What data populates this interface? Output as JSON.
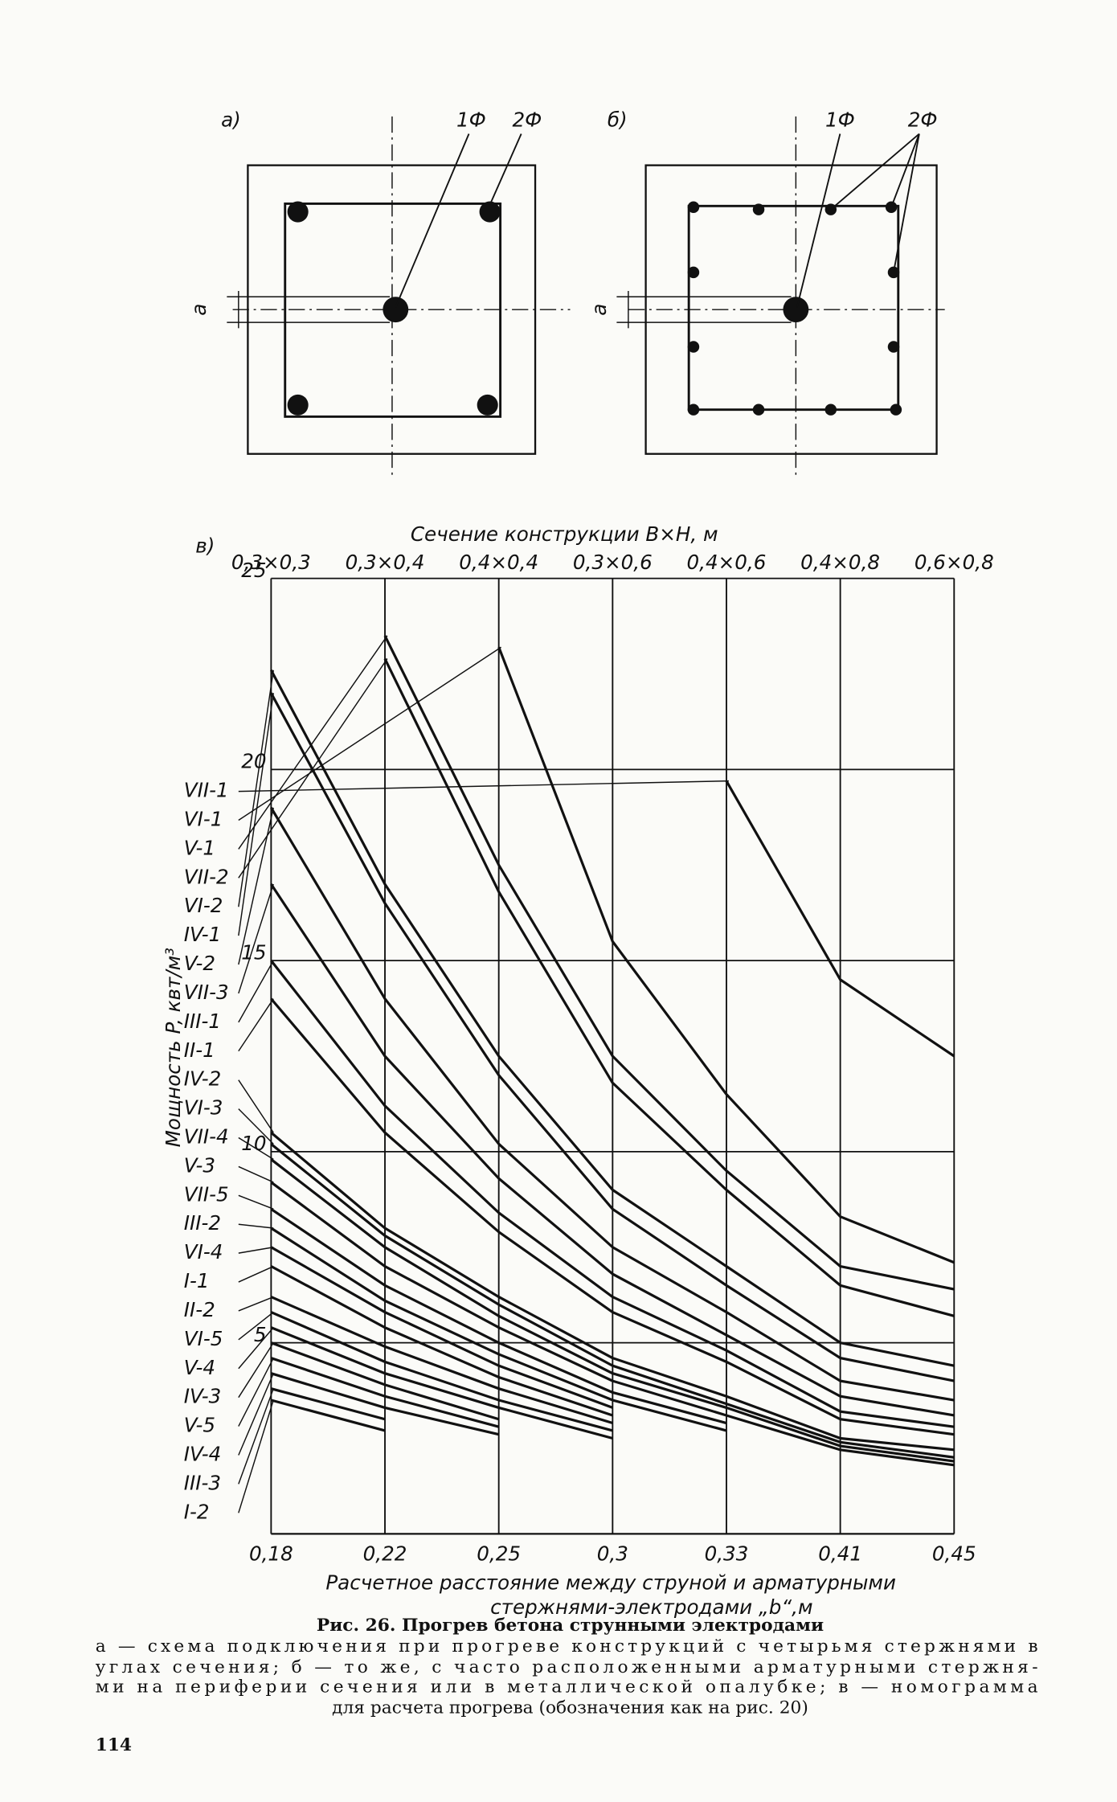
{
  "figure": {
    "panel_a": "а)",
    "panel_b": "б)",
    "a_bar1": "1Ф",
    "a_bar2": "2Ф",
    "b_bar1": "1Ф",
    "b_bar2": "2Ф",
    "a_dim": "a",
    "b_dim": "a"
  },
  "chart_data": {
    "type": "line",
    "panel_label": "в)",
    "top_axis_label": "Сечение конструкции B×H, м",
    "top_categories": [
      "0,3×0,3",
      "0,3×0,4",
      "0,4×0,4",
      "0,3×0,6",
      "0,4×0,6",
      "0,4×0,8",
      "0,6×0,8"
    ],
    "ylabel": "Мощность P, квт/м³",
    "xlabel": [
      "Расчетное расстояние между струной и арматурными",
      "стержнями-электродами „b“,м"
    ],
    "categories": [
      "0,18",
      "0,22",
      "0,25",
      "0,3",
      "0,33",
      "0,41",
      "0,45"
    ],
    "ylim": [
      0,
      25
    ],
    "yticks": [
      5,
      10,
      15,
      20,
      25
    ],
    "grid": true,
    "color": "#111111",
    "series": [
      {
        "name": "VII-1",
        "values": [
          null,
          null,
          null,
          null,
          19.7,
          14.5,
          12.5
        ]
      },
      {
        "name": "VI-1",
        "values": [
          null,
          null,
          23.2,
          15.5,
          11.5,
          8.3,
          7.1
        ]
      },
      {
        "name": "V-1",
        "values": [
          null,
          23.5,
          17.5,
          12.5,
          9.5,
          7.0,
          6.4
        ]
      },
      {
        "name": "VII-2",
        "values": [
          null,
          22.9,
          16.8,
          11.8,
          9.0,
          6.5,
          5.7
        ]
      },
      {
        "name": "VI-2",
        "values": [
          22.6,
          17.0,
          12.5,
          9.0,
          7.0,
          5.0,
          4.4
        ]
      },
      {
        "name": "IV-1",
        "values": [
          22.0,
          16.5,
          12.0,
          8.5,
          6.5,
          4.6,
          4.0
        ]
      },
      {
        "name": "V-2",
        "values": [
          19.0,
          14.0,
          10.2,
          7.5,
          5.8,
          4.0,
          3.5
        ]
      },
      {
        "name": "VII-3",
        "values": [
          17.0,
          12.5,
          9.3,
          6.8,
          5.2,
          3.6,
          3.1
        ]
      },
      {
        "name": "III-1",
        "values": [
          15.0,
          11.2,
          8.4,
          6.2,
          4.8,
          3.2,
          2.8
        ]
      },
      {
        "name": "II-1",
        "values": [
          14.0,
          10.5,
          7.9,
          5.8,
          4.5,
          3.0,
          2.6
        ]
      },
      {
        "name": "IV-2",
        "values": [
          10.5,
          8.0,
          6.2,
          4.6,
          3.6,
          2.5,
          2.2
        ]
      },
      {
        "name": "VI-3",
        "values": [
          10.2,
          7.8,
          6.0,
          4.4,
          3.4,
          2.4,
          2.0
        ]
      },
      {
        "name": "VII-4",
        "values": [
          9.8,
          7.5,
          5.7,
          4.2,
          3.3,
          2.3,
          1.9
        ]
      },
      {
        "name": "V-3",
        "values": [
          9.2,
          7.0,
          5.4,
          4.0,
          3.1,
          2.2,
          1.8
        ]
      },
      {
        "name": "VII-5",
        "values": [
          8.5,
          6.5,
          5.0,
          3.7,
          2.9,
          null,
          null
        ]
      },
      {
        "name": "III-2",
        "values": [
          8.0,
          6.1,
          4.7,
          3.5,
          2.7,
          null,
          null
        ]
      },
      {
        "name": "VI-4",
        "values": [
          7.5,
          5.8,
          4.4,
          3.3,
          null,
          null,
          null
        ]
      },
      {
        "name": "I-1",
        "values": [
          7.0,
          5.4,
          4.1,
          3.1,
          null,
          null,
          null
        ]
      },
      {
        "name": "II-2",
        "values": [
          6.2,
          4.9,
          3.8,
          2.9,
          null,
          null,
          null
        ]
      },
      {
        "name": "VI-5",
        "values": [
          5.8,
          4.5,
          3.5,
          2.7,
          null,
          null,
          null
        ]
      },
      {
        "name": "V-4",
        "values": [
          5.4,
          4.2,
          3.3,
          2.5,
          null,
          null,
          null
        ]
      },
      {
        "name": "IV-3",
        "values": [
          5.0,
          3.9,
          3.0,
          null,
          null,
          null,
          null
        ]
      },
      {
        "name": "V-5",
        "values": [
          4.6,
          3.6,
          2.8,
          null,
          null,
          null,
          null
        ]
      },
      {
        "name": "IV-4",
        "values": [
          4.2,
          3.3,
          2.6,
          null,
          null,
          null,
          null
        ]
      },
      {
        "name": "III-3",
        "values": [
          3.8,
          3.0,
          null,
          null,
          null,
          null,
          null
        ]
      },
      {
        "name": "I-2",
        "values": [
          3.5,
          2.7,
          null,
          null,
          null,
          null,
          null
        ]
      }
    ]
  },
  "caption": {
    "title": "Рис. 26. Прогрев бетона струнными электродами",
    "lines": [
      "а — схема подключения при прогреве конструкций с четырьмя стержнями в",
      "углах сечения; б — то же, с часто расположенными арматурными стержня-",
      "ми на периферии сечения или в металлической опалубке; в — номограмма",
      "для расчета прогрева (обозначения как на рис. 20)"
    ]
  },
  "page_number": "114"
}
